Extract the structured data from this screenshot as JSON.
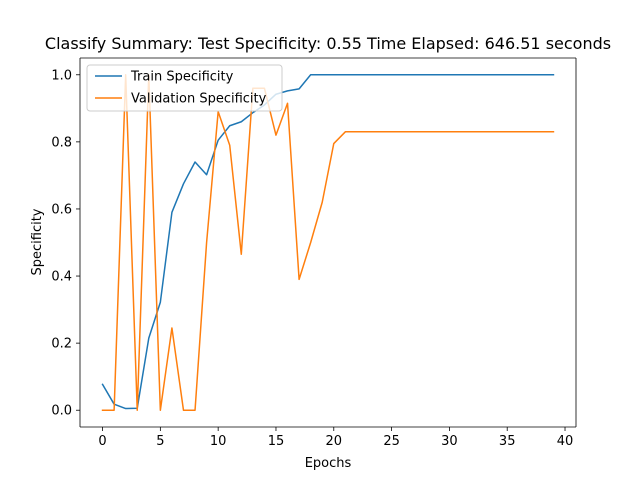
{
  "chart_data": {
    "type": "line",
    "title": "Classify Summary: Test Specificity: 0.55 Time Elapsed: 646.51 seconds",
    "xlabel": "Epochs",
    "ylabel": "Specificity",
    "xlim": [
      -1.95,
      40.95
    ],
    "ylim": [
      -0.05,
      1.05
    ],
    "xticks": [
      0,
      5,
      10,
      15,
      20,
      25,
      30,
      35,
      40
    ],
    "xtick_labels": [
      "0",
      "5",
      "10",
      "15",
      "20",
      "25",
      "30",
      "35",
      "40"
    ],
    "yticks": [
      0.0,
      0.2,
      0.4,
      0.6,
      0.8,
      1.0
    ],
    "ytick_labels": [
      "0.0",
      "0.2",
      "0.4",
      "0.6",
      "0.8",
      "1.0"
    ],
    "grid": false,
    "legend_position": "top-left",
    "x": [
      0,
      1,
      2,
      3,
      4,
      5,
      6,
      7,
      8,
      9,
      10,
      11,
      12,
      13,
      14,
      15,
      16,
      17,
      18,
      19,
      20,
      21,
      22,
      23,
      24,
      25,
      26,
      27,
      28,
      29,
      30,
      31,
      32,
      33,
      34,
      35,
      36,
      37,
      38,
      39
    ],
    "series": [
      {
        "name": "Train Specificity",
        "color": "#1f77b4",
        "values": [
          0.077,
          0.018,
          0.005,
          0.006,
          0.215,
          0.322,
          0.59,
          0.675,
          0.74,
          0.702,
          0.805,
          0.848,
          0.86,
          0.887,
          0.91,
          0.942,
          0.952,
          0.958,
          1.0,
          1.0,
          1.0,
          1.0,
          1.0,
          1.0,
          1.0,
          1.0,
          1.0,
          1.0,
          1.0,
          1.0,
          1.0,
          1.0,
          1.0,
          1.0,
          1.0,
          1.0,
          1.0,
          1.0,
          1.0,
          1.0
        ]
      },
      {
        "name": "Validation Specificity",
        "color": "#ff7f0e",
        "values": [
          0.0,
          0.0,
          1.0,
          0.0,
          1.0,
          0.0,
          0.245,
          0.0,
          0.0,
          0.5,
          0.89,
          0.79,
          0.465,
          0.96,
          0.96,
          0.82,
          0.915,
          0.39,
          0.5,
          0.62,
          0.795,
          0.83,
          0.83,
          0.83,
          0.83,
          0.83,
          0.83,
          0.83,
          0.83,
          0.83,
          0.83,
          0.83,
          0.83,
          0.83,
          0.83,
          0.83,
          0.83,
          0.83,
          0.83,
          0.83
        ]
      }
    ]
  }
}
